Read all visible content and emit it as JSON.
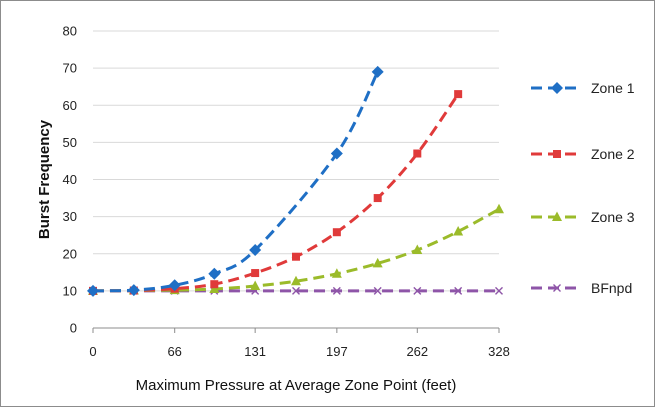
{
  "chart_data": {
    "type": "line",
    "title": "",
    "xlabel": "Maximum Pressure at Average Zone Point (feet)",
    "ylabel": "Burst Frequency",
    "xlim": [
      0,
      328
    ],
    "ylim": [
      0,
      80
    ],
    "xticks": [
      0,
      66,
      131,
      197,
      262,
      328
    ],
    "xtick_labels": [
      "0",
      "66",
      "131",
      "197",
      "262",
      "328"
    ],
    "yticks": [
      0,
      10,
      20,
      30,
      40,
      50,
      60,
      70,
      80
    ],
    "ytick_labels": [
      "0",
      "10",
      "20",
      "30",
      "40",
      "50",
      "60",
      "70",
      "80"
    ],
    "grid": "horizontal",
    "legend_position": "right",
    "series": [
      {
        "name": "Zone 1",
        "color": "#1f6fc5",
        "marker": "diamond",
        "x": [
          0,
          33,
          66,
          98,
          131,
          197,
          230
        ],
        "y": [
          10,
          10.2,
          11.5,
          14.6,
          21,
          47,
          69
        ]
      },
      {
        "name": "Zone 2",
        "color": "#e03a3a",
        "marker": "square",
        "x": [
          0,
          33,
          66,
          98,
          131,
          164,
          197,
          230,
          262,
          295
        ],
        "y": [
          10,
          10.1,
          10.6,
          11.8,
          14.8,
          19.2,
          25.8,
          35,
          47,
          63
        ]
      },
      {
        "name": "Zone 3",
        "color": "#9bbb2a",
        "marker": "triangle",
        "x": [
          0,
          33,
          66,
          98,
          131,
          164,
          197,
          230,
          262,
          295,
          328
        ],
        "y": [
          10,
          10.1,
          10.2,
          10.5,
          11.3,
          12.6,
          14.6,
          17.4,
          21,
          26,
          32
        ]
      },
      {
        "name": "BFnpd",
        "color": "#8e55a8",
        "marker": "x",
        "x": [
          0,
          33,
          66,
          98,
          131,
          164,
          197,
          230,
          262,
          295,
          328
        ],
        "y": [
          10,
          10,
          10,
          10,
          10,
          10,
          10,
          10,
          10,
          10,
          10
        ]
      }
    ]
  }
}
